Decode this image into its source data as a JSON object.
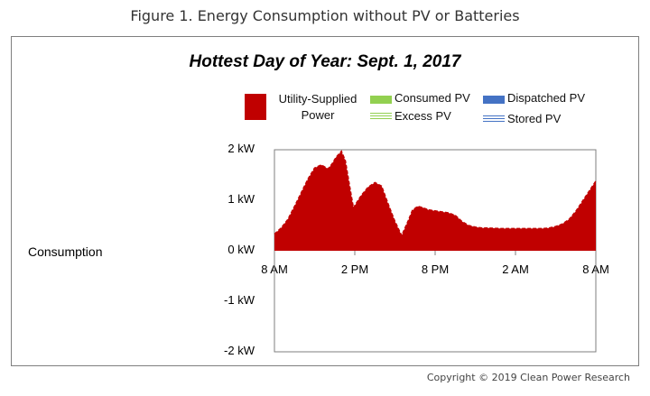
{
  "figure_caption": "Figure 1. Energy Consumption without PV or Batteries",
  "copyright": "Copyright © 2019 Clean Power Research",
  "colors": {
    "utility": "#c00000",
    "consumed_pv": "#92d050",
    "excess_pv": "#92d050",
    "dispatched_pv": "#4472c4",
    "stored_pv": "#4472c4",
    "frame": "#7f7f7f"
  },
  "chart_data": {
    "type": "area",
    "title": "Hottest Day of Year: Sept. 1, 2017",
    "ylabel": "Consumption",
    "xlabel": "",
    "y_unit": "kW",
    "ylim": [
      -2,
      2
    ],
    "yticks": [
      2,
      1,
      0,
      -1,
      -2
    ],
    "ytick_labels": [
      "2 kW",
      "1 kW",
      "0 kW",
      "-1 kW",
      "-2 kW"
    ],
    "x_range_hours": [
      8,
      32
    ],
    "xticks": [
      8,
      14,
      20,
      26,
      32
    ],
    "xtick_labels": [
      "8 AM",
      "2 PM",
      "8 PM",
      "2 AM",
      "8 AM"
    ],
    "legend": [
      {
        "name": "Utility-Supplied Power",
        "label_lines": [
          "Utility-Supplied",
          "Power"
        ],
        "style": "solid",
        "color_key": "utility"
      },
      {
        "name": "Consumed PV",
        "style": "solid",
        "color_key": "consumed_pv"
      },
      {
        "name": "Excess PV",
        "style": "striped",
        "color_key": "excess_pv"
      },
      {
        "name": "Dispatched PV",
        "style": "solid",
        "color_key": "dispatched_pv"
      },
      {
        "name": "Stored PV",
        "style": "striped",
        "color_key": "stored_pv"
      }
    ],
    "series": [
      {
        "name": "Utility-Supplied Power",
        "x": [
          8,
          8.5,
          9,
          9.5,
          10,
          10.5,
          11,
          11.5,
          12,
          12.3,
          12.6,
          13,
          13.3,
          13.6,
          13.9,
          14.2,
          14.5,
          15,
          15.5,
          16,
          16.5,
          17,
          17.5,
          18,
          18.3,
          18.7,
          19,
          19.5,
          20,
          20.5,
          21,
          21.5,
          22,
          22.5,
          23,
          23.5,
          24,
          25,
          26,
          27,
          28,
          28.5,
          29,
          29.5,
          30,
          30.5,
          31,
          31.5,
          32
        ],
        "values": [
          0.33,
          0.45,
          0.62,
          0.88,
          1.15,
          1.42,
          1.64,
          1.7,
          1.62,
          1.72,
          1.85,
          1.97,
          1.78,
          1.3,
          0.85,
          0.98,
          1.1,
          1.26,
          1.35,
          1.28,
          0.92,
          0.58,
          0.3,
          0.6,
          0.8,
          0.88,
          0.86,
          0.81,
          0.79,
          0.77,
          0.75,
          0.7,
          0.58,
          0.5,
          0.47,
          0.45,
          0.45,
          0.44,
          0.44,
          0.44,
          0.44,
          0.45,
          0.48,
          0.53,
          0.62,
          0.78,
          0.98,
          1.18,
          1.38
        ]
      },
      {
        "name": "Consumed PV",
        "values": []
      },
      {
        "name": "Excess PV",
        "values": []
      },
      {
        "name": "Dispatched PV",
        "values": []
      },
      {
        "name": "Stored PV",
        "values": []
      }
    ]
  }
}
